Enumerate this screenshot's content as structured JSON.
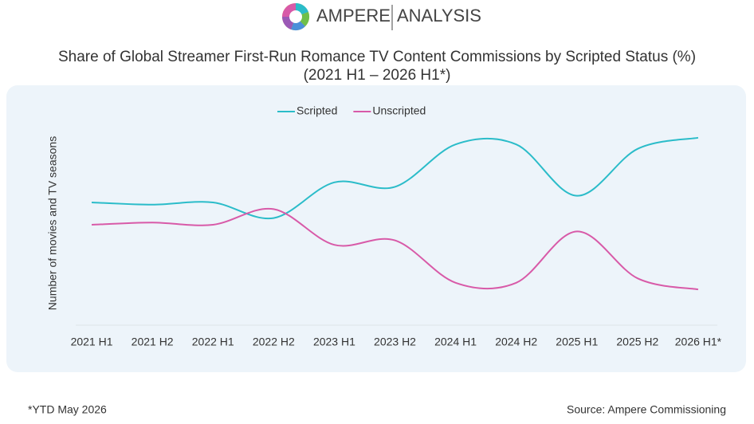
{
  "logo": {
    "brand": "AMPERE",
    "suffix": "ANALYSIS"
  },
  "chart_data": {
    "type": "line",
    "title": "Share of Global Streamer First-Run Romance TV Content Commissions by Scripted Status (%) (2021 H1 – 2026 H1*)",
    "y_label": "Number of movies and TV seasons",
    "categories": [
      "2021 H1",
      "2021 H2",
      "2022 H1",
      "2022 H2",
      "2023 H1",
      "2023 H2",
      "2024 H1",
      "2024 H2",
      "2025 H1",
      "2025 H2",
      "2026 H1*"
    ],
    "series": [
      {
        "name": "Scripted",
        "color": "#2bbcc9",
        "values": [
          55,
          54,
          55,
          48,
          64,
          62,
          81,
          81,
          58,
          79,
          84
        ]
      },
      {
        "name": "Unscripted",
        "color": "#d85aa8",
        "values": [
          45,
          46,
          45,
          52,
          36,
          38,
          19,
          19,
          42,
          21,
          16
        ]
      }
    ],
    "ylim": [
      0,
      100
    ],
    "legend": "top",
    "footnote": "*YTD May 2026",
    "source": "Source: Ampere Commissioning"
  }
}
